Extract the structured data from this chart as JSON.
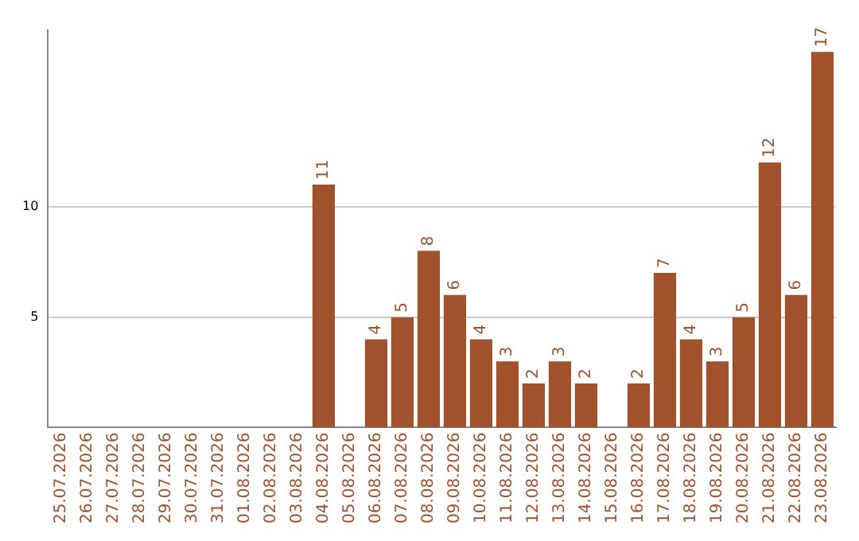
{
  "chart_data": {
    "type": "bar",
    "categories": [
      "25.07.2026",
      "26.07.2026",
      "27.07.2026",
      "28.07.2026",
      "29.07.2026",
      "30.07.2026",
      "31.07.2026",
      "01.08.2026",
      "02.08.2026",
      "03.08.2026",
      "04.08.2026",
      "05.08.2026",
      "06.08.2026",
      "07.08.2026",
      "08.08.2026",
      "09.08.2026",
      "10.08.2026",
      "11.08.2026",
      "12.08.2026",
      "13.08.2026",
      "14.08.2026",
      "15.08.2026",
      "16.08.2026",
      "17.08.2026",
      "18.08.2026",
      "19.08.2026",
      "20.08.2026",
      "21.08.2026",
      "22.08.2026",
      "23.08.2026"
    ],
    "values": [
      null,
      null,
      null,
      null,
      null,
      null,
      null,
      null,
      null,
      null,
      11,
      null,
      4,
      5,
      8,
      6,
      4,
      3,
      2,
      3,
      2,
      null,
      2,
      7,
      4,
      3,
      5,
      12,
      6,
      17
    ],
    "color": "#a0522d",
    "ylim": [
      0,
      18
    ],
    "yticks": [
      5,
      10
    ],
    "grid": "y",
    "data_labels": true,
    "legend": false
  }
}
